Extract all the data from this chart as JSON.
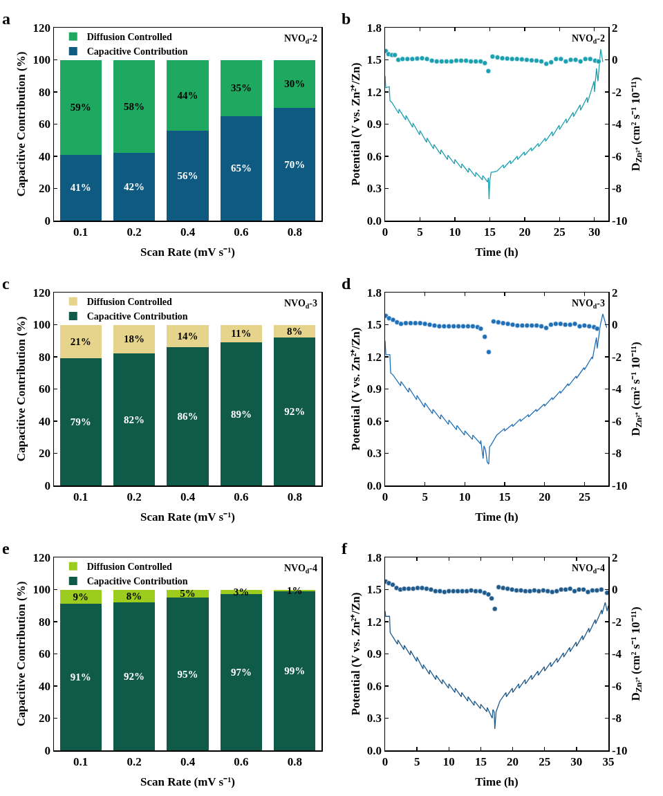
{
  "chart_data": [
    {
      "type": "bar",
      "stacked": true,
      "categories": [
        "0.1",
        "0.2",
        "0.4",
        "0.6",
        "0.8"
      ],
      "xlabel": "Scan Rate (mV s⁻¹)",
      "ylabel": "Capacitive Contribution (%)",
      "ylim": [
        0,
        120
      ],
      "yticks": [
        0,
        20,
        40,
        60,
        80,
        100,
        120
      ],
      "legend": "top left",
      "annotations": [
        "a",
        "NVO$_{d}$-2"
      ],
      "series": [
        {
          "name": "Capacitive Contribution",
          "color": "#0e5a80",
          "values": [
            41,
            42,
            56,
            65,
            70
          ],
          "value_labels": [
            "41%",
            "42%",
            "56%",
            "65%",
            "70%"
          ]
        },
        {
          "name": "Diffusion Controlled",
          "color": "#1ea860",
          "values": [
            59,
            58,
            44,
            35,
            30
          ],
          "value_labels": [
            "59%",
            "58%",
            "44%",
            "35%",
            "30%"
          ]
        }
      ]
    },
    {
      "type": "line",
      "xlabel": "Time (h)",
      "ylabel": "Potential (V vs. Zn²⁺/Zn)",
      "y2label": "D$_{Zn²⁺}$ (cm² s⁻¹ 10⁻¹¹)",
      "xlim": [
        0,
        32
      ],
      "xticks": [
        0,
        5,
        10,
        15,
        20,
        25,
        30
      ],
      "ylim": [
        0,
        1.8
      ],
      "yticks": [
        {
          "value": 0,
          "label": "0.0"
        },
        {
          "value": 0.3,
          "label": "0.3"
        },
        {
          "value": 0.6,
          "label": "0.6"
        },
        {
          "value": 0.9,
          "label": "0.9"
        },
        {
          "value": 1.2,
          "label": "1.2"
        },
        {
          "value": 1.5,
          "label": "1.5"
        },
        {
          "value": 1.8,
          "label": "1.8"
        }
      ],
      "y2lim": [
        -10,
        2
      ],
      "y2ticks": [
        -10,
        -8,
        -6,
        -4,
        -2,
        0,
        2
      ],
      "annotations": [
        "b",
        "NVO$_{d}$-2"
      ],
      "series": [
        {
          "type": "line",
          "color": "#1aa0b0",
          "x": [
            0,
            0.1,
            0.6,
            0.7,
            1,
            1.95,
            2,
            2.95,
            3,
            3.95,
            4,
            4.95,
            5,
            5.95,
            6,
            6.95,
            7,
            7.95,
            8,
            8.95,
            9,
            9.95,
            10,
            10.95,
            11,
            11.95,
            12,
            12.95,
            13,
            13.95,
            14,
            14.7,
            14.8,
            14.9,
            15.0,
            15.2,
            16,
            16.95,
            17,
            17.95,
            18,
            18.95,
            19,
            19.95,
            20,
            20.95,
            21,
            21.95,
            22,
            22.95,
            23,
            23.95,
            24,
            24.95,
            25,
            25.95,
            26,
            26.95,
            27,
            27.95,
            28,
            28.95,
            29,
            29.95,
            30,
            30.3,
            30.5,
            30.9,
            31.2
          ],
          "values": [
            1.35,
            1.24,
            1.25,
            1.12,
            1.1,
            1.0,
            1.04,
            0.94,
            0.98,
            0.87,
            0.91,
            0.8,
            0.84,
            0.73,
            0.77,
            0.67,
            0.71,
            0.62,
            0.66,
            0.57,
            0.61,
            0.53,
            0.57,
            0.49,
            0.53,
            0.45,
            0.49,
            0.41,
            0.45,
            0.38,
            0.42,
            0.36,
            0.4,
            0.2,
            0.37,
            0.45,
            0.46,
            0.52,
            0.49,
            0.56,
            0.53,
            0.6,
            0.57,
            0.64,
            0.61,
            0.68,
            0.65,
            0.72,
            0.69,
            0.77,
            0.74,
            0.83,
            0.79,
            0.89,
            0.85,
            0.95,
            0.91,
            1.01,
            0.97,
            1.08,
            1.03,
            1.15,
            1.1,
            1.3,
            1.2,
            1.42,
            1.3,
            1.6,
            1.48
          ]
        },
        {
          "type": "scatter",
          "axis": "y2",
          "marker": "circle",
          "color": "#1aa0b0",
          "x": [
            0.1,
            0.5,
            1.0,
            1.4,
            1.9,
            2.5,
            3.2,
            3.9,
            4.6,
            5.3,
            6.0,
            6.7,
            7.4,
            8.1,
            8.8,
            9.5,
            10.2,
            10.9,
            11.6,
            12.3,
            13.0,
            13.7,
            14.3,
            14.8,
            15.4,
            16.1,
            16.8,
            17.5,
            18.2,
            18.9,
            19.6,
            20.3,
            21.0,
            21.7,
            22.4,
            23.1,
            23.8,
            24.5,
            25.2,
            25.9,
            26.6,
            27.3,
            28.0,
            28.7,
            29.4,
            30.1,
            30.6
          ],
          "values": [
            0.55,
            0.35,
            0.3,
            0.3,
            0.0,
            0.05,
            0.05,
            0.05,
            0.08,
            0.1,
            0.05,
            -0.05,
            -0.1,
            -0.1,
            -0.1,
            -0.1,
            -0.05,
            -0.05,
            -0.05,
            -0.1,
            -0.1,
            -0.1,
            -0.2,
            -0.7,
            0.2,
            0.15,
            0.1,
            0.08,
            0.05,
            0.05,
            0.03,
            0.0,
            -0.03,
            -0.05,
            -0.1,
            -0.25,
            -0.15,
            0.05,
            0.05,
            -0.1,
            0.0,
            0.0,
            -0.1,
            0.05,
            0.05,
            -0.05,
            -0.1
          ]
        }
      ]
    },
    {
      "type": "bar",
      "stacked": true,
      "categories": [
        "0.1",
        "0.2",
        "0.4",
        "0.6",
        "0.8"
      ],
      "xlabel": "Scan Rate (mV s⁻¹)",
      "ylabel": "Capacitive Contribution (%)",
      "ylim": [
        0,
        120
      ],
      "yticks": [
        0,
        20,
        40,
        60,
        80,
        100,
        120
      ],
      "legend": "top left",
      "annotations": [
        "c",
        "NVO$_{d}$-3"
      ],
      "series": [
        {
          "name": "Capacitive Contribution",
          "color": "#0f5a48",
          "values": [
            79,
            82,
            86,
            89,
            92
          ],
          "value_labels": [
            "79%",
            "82%",
            "86%",
            "89%",
            "92%"
          ]
        },
        {
          "name": "Diffusion Controlled",
          "color": "#e6d48c",
          "values": [
            21,
            18,
            14,
            11,
            8
          ],
          "value_labels": [
            "21%",
            "18%",
            "14%",
            "11%",
            "8%"
          ]
        }
      ]
    },
    {
      "type": "line",
      "xlabel": "Time (h)",
      "ylabel": "Potential (V vs. Zn²⁺/Zn)",
      "y2label": "D$_{Zn²⁺}$ (cm² s⁻¹ 10⁻¹¹)",
      "xlim": [
        0,
        28
      ],
      "xticks": [
        0,
        5,
        10,
        15,
        20,
        25
      ],
      "ylim": [
        0,
        1.8
      ],
      "yticks": [
        {
          "value": 0,
          "label": "0.0"
        },
        {
          "value": 0.3,
          "label": "0.3"
        },
        {
          "value": 0.6,
          "label": "0.6"
        },
        {
          "value": 0.9,
          "label": "0.9"
        },
        {
          "value": 1.2,
          "label": "1.2"
        },
        {
          "value": 1.5,
          "label": "1.5"
        },
        {
          "value": 1.8,
          "label": "1.8"
        }
      ],
      "y2lim": [
        -10,
        2
      ],
      "y2ticks": [
        -10,
        -8,
        -6,
        -4,
        -2,
        0,
        2
      ],
      "annotations": [
        "d",
        "NVO$_{d}$-3"
      ],
      "series": [
        {
          "type": "line",
          "color": "#2070b8",
          "x": [
            0,
            0.1,
            0.6,
            0.7,
            1,
            1.95,
            2,
            2.95,
            3,
            3.95,
            4,
            4.95,
            5,
            5.95,
            6,
            6.95,
            7,
            7.95,
            8,
            8.95,
            9,
            9.95,
            10,
            10.95,
            11,
            11.95,
            12,
            12.3,
            12.4,
            12.6,
            12.8,
            13.0,
            13.1,
            13.3,
            14,
            14.95,
            15,
            15.95,
            16,
            16.95,
            17,
            17.95,
            18,
            18.95,
            19,
            19.95,
            20,
            20.95,
            21,
            21.95,
            22,
            22.95,
            23,
            23.95,
            24,
            24.95,
            25,
            25.95,
            26,
            26.5,
            26.6,
            27.0,
            27.3,
            27.8
          ],
          "values": [
            1.35,
            1.22,
            1.22,
            1.05,
            1.03,
            0.93,
            0.97,
            0.87,
            0.91,
            0.8,
            0.84,
            0.73,
            0.77,
            0.67,
            0.71,
            0.62,
            0.66,
            0.57,
            0.61,
            0.52,
            0.56,
            0.47,
            0.51,
            0.43,
            0.47,
            0.39,
            0.42,
            0.25,
            0.37,
            0.33,
            0.22,
            0.2,
            0.36,
            0.38,
            0.47,
            0.53,
            0.51,
            0.57,
            0.55,
            0.62,
            0.6,
            0.66,
            0.64,
            0.71,
            0.69,
            0.76,
            0.74,
            0.82,
            0.8,
            0.88,
            0.86,
            0.95,
            0.93,
            1.02,
            1.0,
            1.1,
            1.08,
            1.2,
            1.18,
            1.38,
            1.28,
            1.5,
            1.6,
            1.47
          ]
        },
        {
          "type": "scatter",
          "axis": "y2",
          "marker": "circle",
          "color": "#2070b8",
          "x": [
            0.1,
            0.5,
            1.0,
            1.5,
            2.0,
            2.6,
            3.2,
            3.8,
            4.4,
            5.0,
            5.6,
            6.2,
            6.8,
            7.4,
            8.0,
            8.6,
            9.2,
            9.8,
            10.4,
            11.0,
            11.6,
            12.0,
            12.5,
            13.0,
            13.6,
            14.2,
            14.8,
            15.4,
            16.0,
            16.6,
            17.2,
            17.8,
            18.4,
            19.0,
            19.6,
            20.2,
            20.8,
            21.4,
            22.0,
            22.6,
            23.2,
            23.8,
            24.4,
            25.0,
            25.6,
            26.2,
            26.6
          ],
          "values": [
            0.55,
            0.4,
            0.3,
            0.15,
            0.05,
            0.1,
            0.1,
            0.1,
            0.1,
            0.05,
            0.0,
            -0.05,
            -0.1,
            -0.1,
            -0.1,
            -0.1,
            -0.1,
            -0.1,
            -0.1,
            -0.1,
            -0.15,
            -0.25,
            -0.75,
            -1.7,
            0.2,
            0.15,
            0.1,
            0.05,
            0.0,
            -0.05,
            -0.05,
            -0.05,
            -0.05,
            -0.05,
            -0.1,
            -0.2,
            0.0,
            0.05,
            0.05,
            0.0,
            0.0,
            0.05,
            -0.1,
            -0.05,
            -0.1,
            -0.15,
            -0.25
          ]
        }
      ]
    },
    {
      "type": "bar",
      "stacked": true,
      "categories": [
        "0.1",
        "0.2",
        "0.4",
        "0.6",
        "0.8"
      ],
      "xlabel": "Scan Rate (mV s⁻¹)",
      "ylabel": "Capacitive Contribution (%)",
      "ylim": [
        0,
        120
      ],
      "yticks": [
        0,
        20,
        40,
        60,
        80,
        100,
        120
      ],
      "legend": "top left",
      "annotations": [
        "e",
        "NVO$_{d}$-4"
      ],
      "series": [
        {
          "name": "Capacitive Contribution",
          "color": "#0f5a48",
          "values": [
            91,
            92,
            95,
            97,
            99
          ],
          "value_labels": [
            "91%",
            "92%",
            "95%",
            "97%",
            "99%"
          ]
        },
        {
          "name": "Diffusion Controlled",
          "color": "#9ccc1e",
          "values": [
            9,
            8,
            5,
            3,
            1
          ],
          "value_labels": [
            "9%",
            "8%",
            "5%",
            "3%",
            "1%"
          ]
        }
      ]
    },
    {
      "type": "line",
      "xlabel": "Time (h)",
      "ylabel": "Potential (V vs. Zn²⁺/Zn)",
      "y2label": "D$_{Zn²⁺}$ (cm² s⁻¹ 10⁻¹¹)",
      "xlim": [
        0,
        35
      ],
      "xticks": [
        0,
        5,
        10,
        15,
        20,
        25,
        30,
        35
      ],
      "ylim": [
        0,
        1.8
      ],
      "yticks": [
        {
          "value": 0,
          "label": "0.0"
        },
        {
          "value": 0.3,
          "label": "0.3"
        },
        {
          "value": 0.6,
          "label": "0.6"
        },
        {
          "value": 0.9,
          "label": "0.9"
        },
        {
          "value": 1.2,
          "label": "1.2"
        },
        {
          "value": 1.5,
          "label": "1.5"
        },
        {
          "value": 1.8,
          "label": "1.8"
        }
      ],
      "y2lim": [
        -10,
        2
      ],
      "y2ticks": [
        -10,
        -8,
        -6,
        -4,
        -2,
        0,
        2
      ],
      "annotations": [
        "f",
        "NVO$_{d}$-4"
      ],
      "series": [
        {
          "type": "line",
          "color": "#1f5a8c",
          "x": [
            0,
            0.1,
            0.7,
            0.8,
            1,
            1.95,
            2,
            2.95,
            3,
            3.95,
            4,
            4.95,
            5,
            5.95,
            6,
            6.95,
            7,
            7.95,
            8,
            8.95,
            9,
            9.95,
            10,
            10.95,
            11,
            11.95,
            12,
            12.95,
            13,
            13.95,
            14,
            14.95,
            15,
            15.95,
            16,
            16.8,
            16.9,
            17.1,
            17.2,
            17.4,
            18,
            18.95,
            19,
            19.95,
            20,
            20.95,
            21,
            21.95,
            22,
            22.95,
            23,
            23.95,
            24,
            24.95,
            25,
            25.95,
            26,
            26.95,
            27,
            27.95,
            28,
            28.95,
            29,
            29.95,
            30,
            30.95,
            31,
            31.95,
            32,
            32.95,
            33,
            33.95,
            34,
            34.5,
            34.8,
            35
          ],
          "values": [
            1.3,
            1.25,
            1.25,
            1.1,
            1.08,
            0.99,
            1.03,
            0.94,
            0.98,
            0.89,
            0.93,
            0.83,
            0.87,
            0.76,
            0.8,
            0.71,
            0.75,
            0.66,
            0.7,
            0.62,
            0.66,
            0.58,
            0.62,
            0.54,
            0.58,
            0.5,
            0.54,
            0.46,
            0.5,
            0.42,
            0.46,
            0.39,
            0.43,
            0.36,
            0.4,
            0.3,
            0.38,
            0.36,
            0.2,
            0.36,
            0.46,
            0.54,
            0.5,
            0.58,
            0.54,
            0.62,
            0.58,
            0.66,
            0.62,
            0.7,
            0.66,
            0.74,
            0.7,
            0.78,
            0.74,
            0.82,
            0.78,
            0.86,
            0.82,
            0.91,
            0.87,
            0.96,
            0.92,
            1.01,
            0.97,
            1.07,
            1.03,
            1.14,
            1.1,
            1.22,
            1.18,
            1.31,
            1.27,
            1.38,
            1.3,
            1.35
          ]
        },
        {
          "type": "scatter",
          "axis": "y2",
          "marker": "circle",
          "color": "#1f5a8c",
          "x": [
            0.1,
            0.6,
            1.2,
            1.8,
            2.4,
            3.0,
            3.7,
            4.4,
            5.1,
            5.8,
            6.5,
            7.2,
            7.9,
            8.6,
            9.3,
            10.0,
            10.7,
            11.4,
            12.1,
            12.8,
            13.5,
            14.2,
            14.9,
            15.6,
            16.2,
            16.7,
            17.2,
            17.8,
            18.5,
            19.2,
            19.9,
            20.6,
            21.3,
            22.0,
            22.7,
            23.4,
            24.1,
            24.8,
            25.5,
            26.2,
            26.9,
            27.6,
            28.3,
            29.0,
            29.7,
            30.4,
            31.1,
            31.8,
            32.5,
            33.2,
            33.9,
            34.8
          ],
          "values": [
            0.5,
            0.4,
            0.3,
            0.1,
            0.0,
            0.05,
            0.05,
            0.05,
            0.1,
            0.1,
            0.05,
            0.0,
            -0.1,
            -0.1,
            -0.15,
            -0.1,
            -0.1,
            -0.1,
            -0.1,
            -0.1,
            -0.05,
            -0.1,
            -0.1,
            -0.2,
            -0.3,
            -0.55,
            -1.2,
            0.15,
            0.1,
            0.05,
            0.0,
            -0.05,
            -0.05,
            -0.1,
            -0.1,
            -0.05,
            -0.1,
            -0.05,
            -0.1,
            -0.15,
            -0.1,
            0.0,
            0.0,
            0.05,
            -0.1,
            0.0,
            0.0,
            -0.15,
            -0.05,
            -0.05,
            0.0,
            -0.2
          ]
        }
      ]
    }
  ]
}
